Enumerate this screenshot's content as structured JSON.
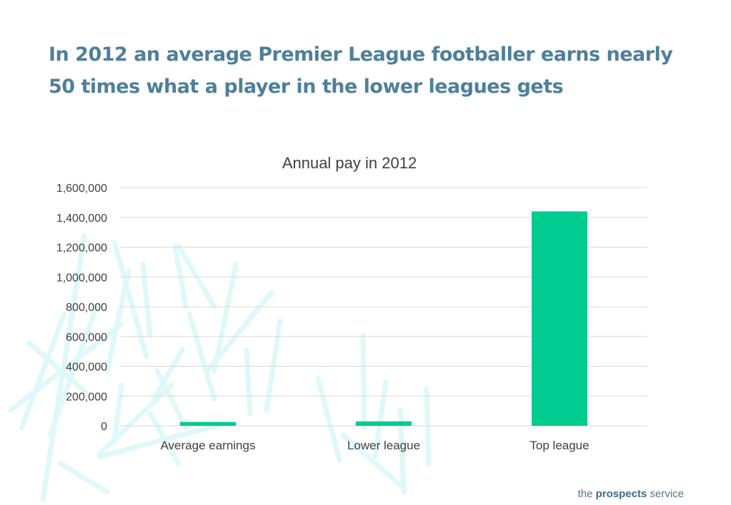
{
  "headline": "In 2012 an average Premier League footballer earns nearly 50 times what a player in the lower leagues gets",
  "brand": {
    "prefix": "the",
    "name": "prospects",
    "suffix": "service"
  },
  "colors": {
    "bar": "#00cc90",
    "headline": "#4f7f9a",
    "grid": "#d9d9d9",
    "decor": "#dff8f8"
  },
  "chart_data": {
    "type": "bar",
    "title": "Annual pay in 2012",
    "categories": [
      "Average earnings",
      "Lower league",
      "Top league"
    ],
    "values": [
      26000,
      30000,
      1440000
    ],
    "ylim": [
      0,
      1600000
    ],
    "yticks": [
      0,
      200000,
      400000,
      600000,
      800000,
      1000000,
      1200000,
      1400000,
      1600000
    ],
    "grid": true,
    "legend": "none",
    "xlabel": "",
    "ylabel": ""
  }
}
